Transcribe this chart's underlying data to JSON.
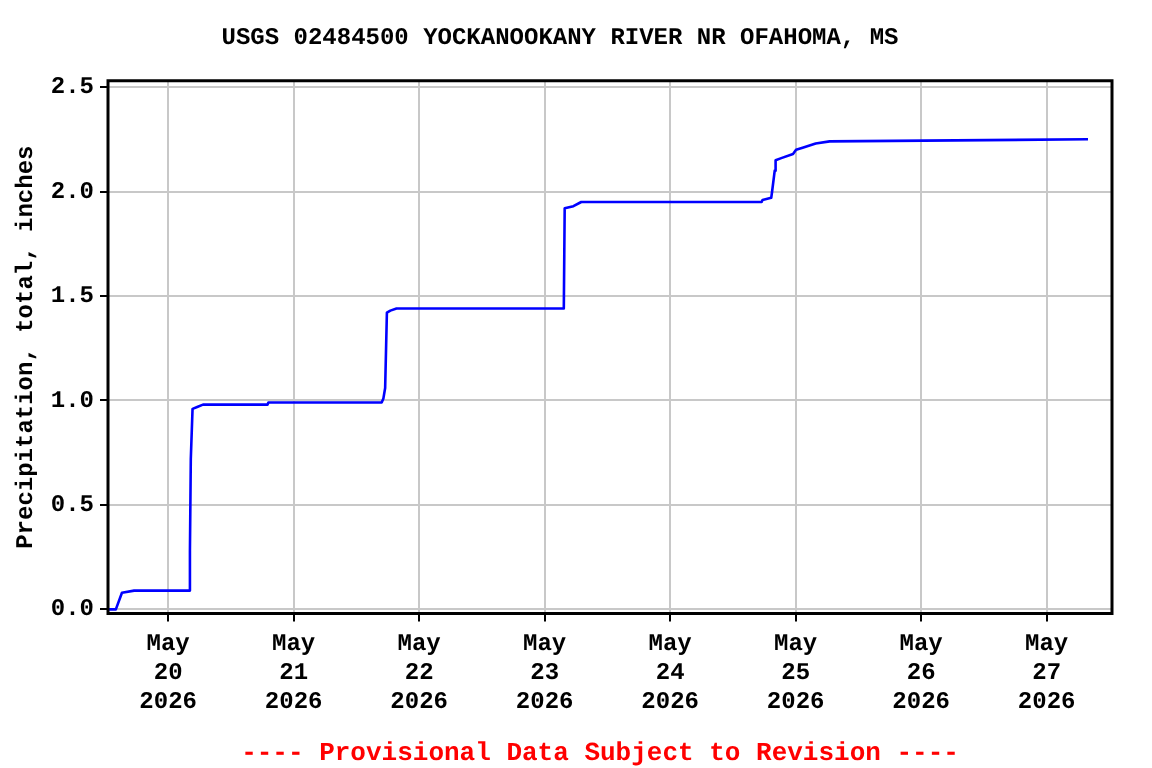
{
  "chart_data": {
    "type": "line",
    "title": "USGS 02484500 YOCKANOOKANY RIVER NR OFAHOMA, MS",
    "ylabel": "Precipitation, total, inches",
    "annotations": [
      "---- Provisional Data Subject to Revision ----"
    ],
    "series": [
      {
        "color": "#0000ff",
        "x": [
          "2026-05-19T12:30",
          "2026-05-19T14:00",
          "2026-05-19T15:10",
          "2026-05-19T17:30",
          "2026-05-20T04:00",
          "2026-05-20T04:10",
          "2026-05-20T04:20",
          "2026-05-20T04:40",
          "2026-05-20T05:40",
          "2026-05-20T06:40",
          "2026-05-20T19:00",
          "2026-05-20T19:10",
          "2026-05-21T16:50",
          "2026-05-21T17:10",
          "2026-05-21T17:30",
          "2026-05-21T17:50",
          "2026-05-21T18:30",
          "2026-05-21T19:40",
          "2026-05-23T03:40",
          "2026-05-23T03:50",
          "2026-05-23T05:30",
          "2026-05-23T07:00",
          "2026-05-24T17:30",
          "2026-05-24T17:40",
          "2026-05-24T19:20",
          "2026-05-24T19:30",
          "2026-05-24T20:00",
          "2026-05-24T20:10",
          "2026-05-24T21:15",
          "2026-05-24T23:30",
          "2026-05-25T00:05",
          "2026-05-25T01:20",
          "2026-05-25T03:50",
          "2026-05-25T06:30",
          "2026-05-27T07:55"
        ],
        "values": [
          0,
          0,
          0.08,
          0.09,
          0.09,
          0.28,
          0.72,
          0.96,
          0.97,
          0.98,
          0.98,
          0.99,
          0.99,
          1.01,
          1.06,
          1.42,
          1.43,
          1.44,
          1.44,
          1.92,
          1.93,
          1.95,
          1.95,
          1.96,
          1.97,
          2.0,
          2.1,
          2.15,
          2.16,
          2.18,
          2.2,
          2.21,
          2.23,
          2.24,
          2.25
        ]
      }
    ],
    "xlim": [
      "2026-05-19T12:30",
      "2026-05-27T12:30"
    ],
    "xticks": [
      {
        "value": "2026-05-20",
        "label": "May\n20\n2026"
      },
      {
        "value": "2026-05-21",
        "label": "May\n21\n2026"
      },
      {
        "value": "2026-05-22",
        "label": "May\n22\n2026"
      },
      {
        "value": "2026-05-23",
        "label": "May\n23\n2026"
      },
      {
        "value": "2026-05-24",
        "label": "May\n24\n2026"
      },
      {
        "value": "2026-05-25",
        "label": "May\n25\n2026"
      },
      {
        "value": "2026-05-26",
        "label": "May\n26\n2026"
      },
      {
        "value": "2026-05-27",
        "label": "May\n27\n2026"
      }
    ],
    "ylim": [
      -0.02,
      2.53
    ],
    "yticks": [
      {
        "value": 0,
        "label": "0.0"
      },
      {
        "value": 0.5,
        "label": "0.5"
      },
      {
        "value": 1,
        "label": "1.0"
      },
      {
        "value": 1.5,
        "label": "1.5"
      },
      {
        "value": 2,
        "label": "2.0"
      },
      {
        "value": 2.5,
        "label": "2.5"
      }
    ],
    "grid": true,
    "line_style": "solid",
    "marker": "none",
    "legend": false
  }
}
